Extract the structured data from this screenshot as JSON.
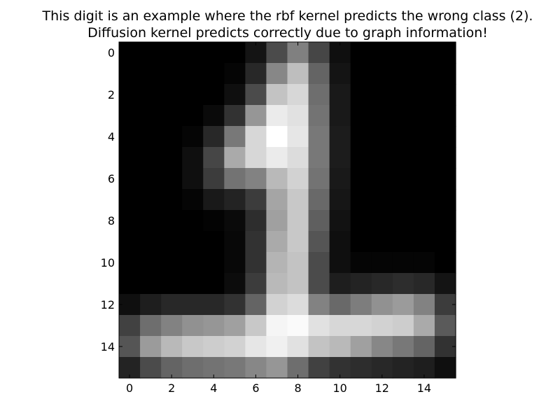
{
  "title_lines": [
    "This digit is an example where the rbf kernel predicts the wrong class (2).",
    "Diffusion kernel predicts correctly due to graph information!"
  ],
  "chart_data": {
    "type": "heatmap",
    "colormap": "gray",
    "title": "This digit is an example where the rbf kernel predicts the wrong class (2). Diffusion kernel predicts correctly due to graph information!",
    "rows": 16,
    "cols": 16,
    "xlim": [
      -0.5,
      15.5
    ],
    "ylim": [
      15.5,
      -0.5
    ],
    "xticks": [
      0,
      2,
      4,
      6,
      8,
      10,
      12,
      14
    ],
    "yticks": [
      0,
      2,
      4,
      6,
      8,
      10,
      12,
      14
    ],
    "xtick_labels": [
      "0",
      "2",
      "4",
      "6",
      "8",
      "10",
      "12",
      "14"
    ],
    "ytick_labels": [
      "0",
      "2",
      "4",
      "6",
      "8",
      "10",
      "12",
      "14"
    ],
    "values": [
      [
        0,
        0,
        0,
        0,
        0,
        0,
        20,
        75,
        128,
        70,
        15,
        0,
        0,
        0,
        0,
        0
      ],
      [
        0,
        0,
        0,
        0,
        0,
        5,
        40,
        135,
        190,
        100,
        20,
        0,
        0,
        0,
        0,
        0
      ],
      [
        0,
        0,
        0,
        0,
        0,
        15,
        75,
        195,
        215,
        110,
        25,
        0,
        0,
        0,
        0,
        0
      ],
      [
        0,
        0,
        0,
        0,
        10,
        50,
        150,
        235,
        225,
        115,
        25,
        0,
        0,
        0,
        0,
        0
      ],
      [
        0,
        0,
        0,
        5,
        40,
        120,
        215,
        255,
        230,
        120,
        28,
        0,
        0,
        0,
        0,
        0
      ],
      [
        0,
        0,
        0,
        15,
        70,
        170,
        215,
        235,
        220,
        120,
        28,
        0,
        0,
        0,
        0,
        0
      ],
      [
        0,
        0,
        0,
        15,
        60,
        115,
        130,
        185,
        210,
        115,
        25,
        0,
        0,
        0,
        0,
        0
      ],
      [
        0,
        0,
        0,
        5,
        25,
        35,
        60,
        165,
        200,
        105,
        22,
        0,
        0,
        0,
        0,
        0
      ],
      [
        0,
        0,
        0,
        0,
        3,
        10,
        45,
        160,
        200,
        95,
        18,
        0,
        0,
        0,
        0,
        0
      ],
      [
        0,
        0,
        0,
        0,
        0,
        8,
        50,
        170,
        200,
        85,
        15,
        0,
        0,
        0,
        0,
        0
      ],
      [
        0,
        0,
        0,
        0,
        0,
        8,
        50,
        180,
        195,
        75,
        15,
        5,
        5,
        5,
        5,
        0
      ],
      [
        0,
        0,
        0,
        0,
        0,
        12,
        60,
        185,
        195,
        75,
        30,
        35,
        40,
        45,
        40,
        20
      ],
      [
        15,
        30,
        40,
        40,
        40,
        50,
        100,
        210,
        220,
        130,
        105,
        125,
        145,
        155,
        130,
        60
      ],
      [
        65,
        110,
        130,
        145,
        150,
        160,
        200,
        245,
        250,
        225,
        215,
        215,
        210,
        205,
        170,
        90
      ],
      [
        85,
        155,
        185,
        200,
        205,
        210,
        230,
        240,
        225,
        195,
        185,
        160,
        135,
        120,
        100,
        50
      ],
      [
        35,
        75,
        100,
        110,
        115,
        120,
        135,
        150,
        110,
        65,
        50,
        45,
        40,
        35,
        30,
        15
      ]
    ]
  }
}
